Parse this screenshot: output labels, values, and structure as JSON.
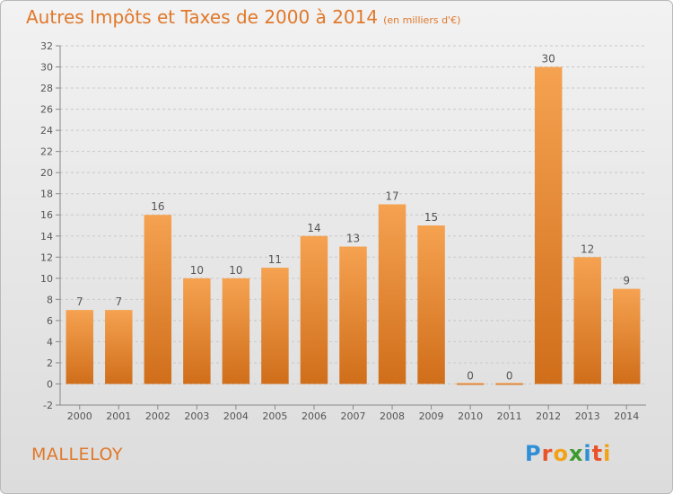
{
  "header": {
    "title": "Autres Impôts et Taxes de 2000 à 2014",
    "subtitle": "(en milliers d'€)"
  },
  "footer": {
    "commune": "MALLELOY",
    "logo_letters": [
      "P",
      "r",
      "o",
      "x",
      "i",
      "t",
      "i"
    ],
    "logo_colors": [
      "#2e8fd6",
      "#e8532a",
      "#f2a215",
      "#3c9b2f",
      "#2e8fd6",
      "#e8532a",
      "#f2a215"
    ]
  },
  "chart_data": {
    "type": "bar",
    "title": "Autres Impôts et Taxes de 2000 à 2014",
    "subtitle": "(en milliers d'€)",
    "categories": [
      "2000",
      "2001",
      "2002",
      "2003",
      "2004",
      "2005",
      "2006",
      "2007",
      "2008",
      "2009",
      "2010",
      "2011",
      "2012",
      "2013",
      "2014"
    ],
    "values": [
      7,
      7,
      16,
      10,
      10,
      11,
      14,
      13,
      17,
      15,
      0,
      0,
      30,
      12,
      9
    ],
    "ylim": [
      -2,
      32
    ],
    "yticks": [
      -2,
      0,
      2,
      4,
      6,
      8,
      10,
      12,
      14,
      16,
      18,
      20,
      22,
      24,
      26,
      28,
      30,
      32
    ],
    "grid": true,
    "bar_color_top": "#f5a251",
    "bar_color_bottom": "#d06e1a"
  }
}
